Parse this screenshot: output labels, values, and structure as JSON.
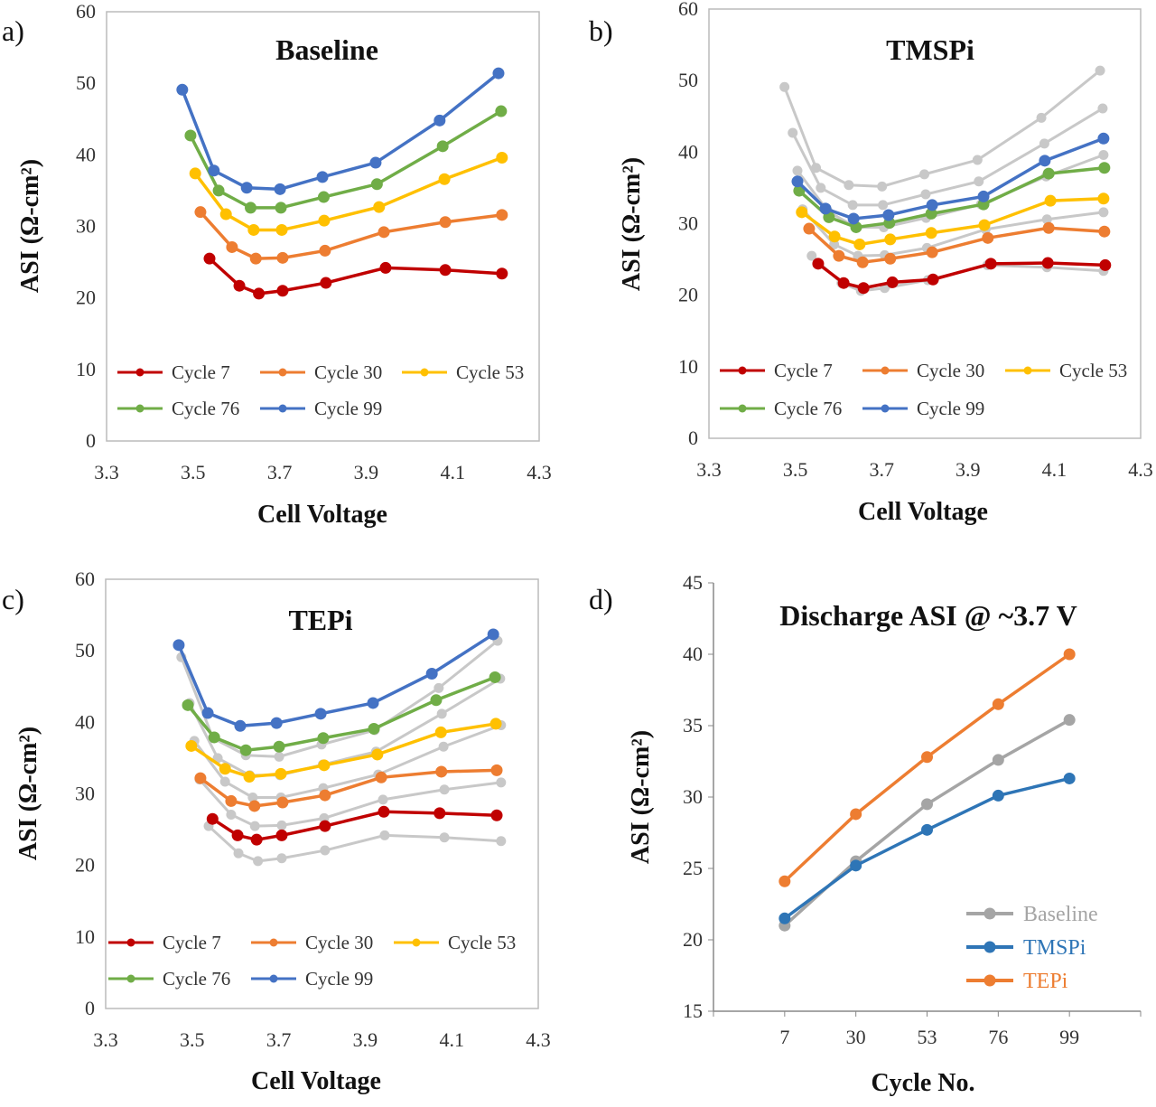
{
  "colors": {
    "cycle7": "#C00000",
    "cycle30": "#ED7D31",
    "cycle53": "#FFC000",
    "cycle76": "#70AD47",
    "cycle99": "#4472C4",
    "reference_gray": "#C8C8C8",
    "d_baseline": "#A5A5A5",
    "d_tmspi": "#2E75B6",
    "d_tepi": "#ED7D31"
  },
  "chart_data": [
    {
      "panel_label": "a)",
      "type": "line",
      "title": "Baseline",
      "xlabel": "Cell Voltage",
      "ylabel": "ASI (Ω-cm²)",
      "xlim": [
        3.3,
        4.3
      ],
      "ylim": [
        0,
        60
      ],
      "xticks": [
        "3.3",
        "3.5",
        "3.7",
        "3.9",
        "4.1",
        "4.3"
      ],
      "yticks": [
        "0",
        "10",
        "20",
        "30",
        "40",
        "50",
        "60"
      ],
      "grid": false,
      "legend": "bottom",
      "series": [
        {
          "name": "Cycle 7",
          "color": "#C00000",
          "x": [
            3.538,
            3.607,
            3.652,
            3.707,
            3.807,
            3.945,
            4.083,
            4.214
          ],
          "y": [
            25.5,
            21.7,
            20.6,
            21.0,
            22.1,
            24.2,
            23.9,
            23.4
          ]
        },
        {
          "name": "Cycle 30",
          "color": "#ED7D31",
          "x": [
            3.517,
            3.59,
            3.645,
            3.707,
            3.805,
            3.941,
            4.083,
            4.214
          ],
          "y": [
            32.0,
            27.1,
            25.5,
            25.6,
            26.6,
            29.2,
            30.6,
            31.6
          ]
        },
        {
          "name": "Cycle 53",
          "color": "#FFC000",
          "x": [
            3.505,
            3.576,
            3.64,
            3.705,
            3.803,
            3.93,
            4.081,
            4.214
          ],
          "y": [
            37.4,
            31.7,
            29.5,
            29.5,
            30.8,
            32.7,
            36.6,
            39.6
          ]
        },
        {
          "name": "Cycle 76",
          "color": "#70AD47",
          "x": [
            3.494,
            3.559,
            3.633,
            3.703,
            3.802,
            3.925,
            4.077,
            4.212
          ],
          "y": [
            42.7,
            35.0,
            32.6,
            32.6,
            34.1,
            35.9,
            41.2,
            46.1
          ]
        },
        {
          "name": "Cycle 99",
          "color": "#4472C4",
          "x": [
            3.475,
            3.548,
            3.624,
            3.701,
            3.799,
            3.922,
            4.07,
            4.206
          ],
          "y": [
            49.1,
            37.8,
            35.4,
            35.2,
            36.9,
            38.9,
            44.8,
            51.4
          ]
        }
      ]
    },
    {
      "panel_label": "b)",
      "type": "line",
      "title": "TMSPi",
      "xlabel": "Cell Voltage",
      "ylabel": "ASI (Ω-cm²)",
      "xlim": [
        3.3,
        4.3
      ],
      "ylim": [
        0,
        60
      ],
      "xticks": [
        "3.3",
        "3.5",
        "3.7",
        "3.9",
        "4.1",
        "4.3"
      ],
      "yticks": [
        "0",
        "10",
        "20",
        "30",
        "40",
        "50",
        "60"
      ],
      "grid": false,
      "legend": "bottom",
      "reference_series": "Baseline curves shown in gray",
      "series": [
        {
          "name": "Cycle 7",
          "color": "#C00000",
          "x": [
            3.553,
            3.612,
            3.658,
            3.725,
            3.819,
            3.953,
            4.085,
            4.218
          ],
          "y": [
            24.4,
            21.7,
            21.0,
            21.8,
            22.2,
            24.4,
            24.5,
            24.2
          ]
        },
        {
          "name": "Cycle 30",
          "color": "#ED7D31",
          "x": [
            3.532,
            3.601,
            3.656,
            3.72,
            3.817,
            3.946,
            4.087,
            4.216
          ],
          "y": [
            29.3,
            25.5,
            24.6,
            25.1,
            26.0,
            28.0,
            29.4,
            28.9
          ]
        },
        {
          "name": "Cycle 53",
          "color": "#FFC000",
          "x": [
            3.515,
            3.591,
            3.649,
            3.72,
            3.815,
            3.938,
            4.091,
            4.214
          ],
          "y": [
            31.6,
            28.2,
            27.1,
            27.8,
            28.7,
            29.8,
            33.2,
            33.5
          ]
        },
        {
          "name": "Cycle 76",
          "color": "#70AD47",
          "x": [
            3.509,
            3.578,
            3.641,
            3.718,
            3.815,
            3.936,
            4.087,
            4.216
          ],
          "y": [
            34.6,
            30.9,
            29.5,
            30.1,
            31.4,
            32.7,
            37.0,
            37.8
          ]
        },
        {
          "name": "Cycle 99",
          "color": "#4472C4",
          "x": [
            3.505,
            3.57,
            3.635,
            3.716,
            3.817,
            3.936,
            4.078,
            4.214
          ],
          "y": [
            35.9,
            32.1,
            30.7,
            31.2,
            32.6,
            33.8,
            38.8,
            41.9
          ]
        }
      ]
    },
    {
      "panel_label": "c)",
      "type": "line",
      "title": "TEPi",
      "xlabel": "Cell Voltage",
      "ylabel": "ASI (Ω-cm²)",
      "xlim": [
        3.3,
        4.3
      ],
      "ylim": [
        0,
        60
      ],
      "xticks": [
        "3.3",
        "3.5",
        "3.7",
        "3.9",
        "4.1",
        "4.3"
      ],
      "yticks": [
        "0",
        "10",
        "20",
        "30",
        "40",
        "50",
        "60"
      ],
      "grid": false,
      "legend": "bottom",
      "reference_series": "Baseline curves shown in gray",
      "series": [
        {
          "name": "Cycle 7",
          "color": "#C00000",
          "x": [
            3.547,
            3.605,
            3.649,
            3.707,
            3.807,
            3.943,
            4.072,
            4.204
          ],
          "y": [
            26.5,
            24.2,
            23.6,
            24.2,
            25.5,
            27.5,
            27.3,
            27.0
          ]
        },
        {
          "name": "Cycle 30",
          "color": "#ED7D31",
          "x": [
            3.519,
            3.59,
            3.644,
            3.709,
            3.807,
            3.937,
            4.076,
            4.204
          ],
          "y": [
            32.2,
            29.0,
            28.3,
            28.8,
            29.8,
            32.3,
            33.1,
            33.3
          ]
        },
        {
          "name": "Cycle 53",
          "color": "#FFC000",
          "x": [
            3.498,
            3.576,
            3.632,
            3.705,
            3.805,
            3.928,
            4.075,
            4.202
          ],
          "y": [
            36.7,
            33.5,
            32.4,
            32.8,
            34.0,
            35.5,
            38.6,
            39.8
          ]
        },
        {
          "name": "Cycle 76",
          "color": "#70AD47",
          "x": [
            3.49,
            3.551,
            3.624,
            3.701,
            3.803,
            3.92,
            4.064,
            4.2
          ],
          "y": [
            42.4,
            37.9,
            36.1,
            36.6,
            37.8,
            39.1,
            43.1,
            46.3
          ]
        },
        {
          "name": "Cycle 99",
          "color": "#4472C4",
          "x": [
            3.469,
            3.536,
            3.611,
            3.695,
            3.797,
            3.918,
            4.054,
            4.196
          ],
          "y": [
            50.8,
            41.3,
            39.5,
            39.9,
            41.2,
            42.7,
            46.8,
            52.3
          ]
        }
      ]
    },
    {
      "panel_label": "d)",
      "type": "line",
      "title": "Discharge ASI @ ~3.7 V",
      "xlabel": "Cycle No.",
      "ylabel": "ASI (Ω-cm²)",
      "categories": [
        "7",
        "30",
        "53",
        "76",
        "99"
      ],
      "ylim": [
        15,
        45
      ],
      "yticks": [
        "15",
        "20",
        "25",
        "30",
        "35",
        "40",
        "45"
      ],
      "grid": false,
      "legend": "bottom-right",
      "series": [
        {
          "name": "Baseline",
          "color": "#A5A5A5",
          "values": [
            21.0,
            25.5,
            29.5,
            32.6,
            35.4
          ]
        },
        {
          "name": "TMSPi",
          "color": "#2E75B6",
          "values": [
            21.5,
            25.2,
            27.7,
            30.1,
            31.3
          ]
        },
        {
          "name": "TEPi",
          "color": "#ED7D31",
          "values": [
            24.1,
            28.8,
            32.8,
            36.5,
            40.0
          ]
        }
      ]
    }
  ]
}
